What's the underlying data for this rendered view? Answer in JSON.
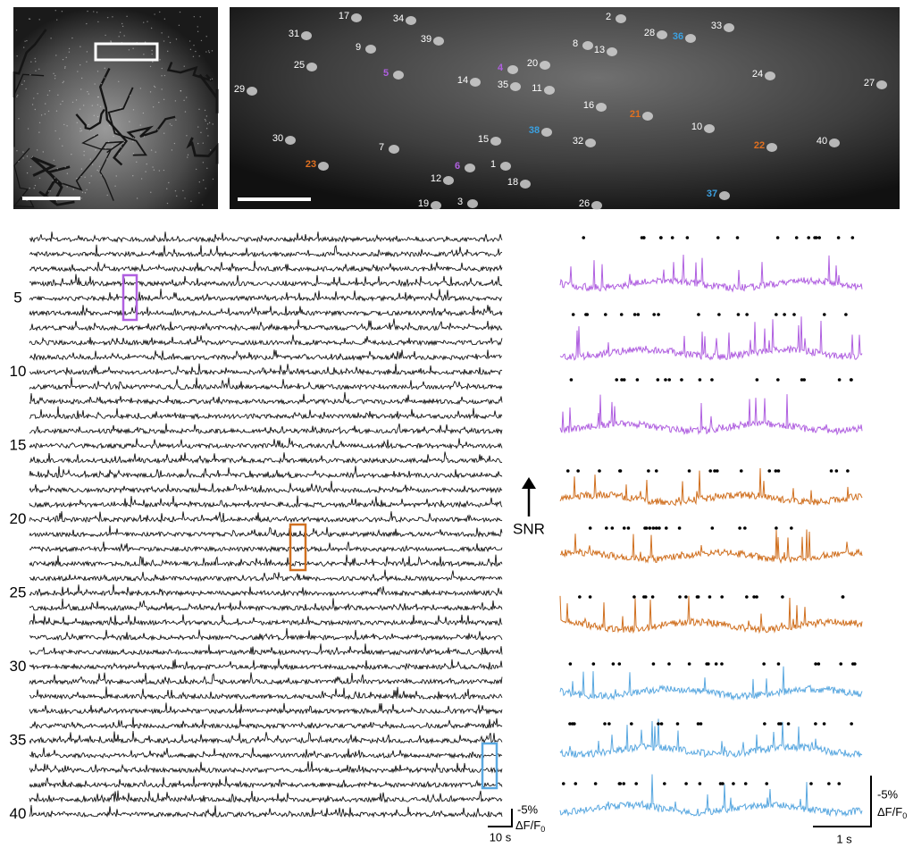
{
  "image_labels": [
    {
      "label": "17",
      "color": "#ffffff"
    },
    {
      "label": "34",
      "color": "#ffffff"
    },
    {
      "label": "2",
      "color": "#ffffff"
    },
    {
      "label": "28",
      "color": "#ffffff"
    },
    {
      "label": "36",
      "color": "#3ba0e0"
    },
    {
      "label": "33",
      "color": "#ffffff"
    },
    {
      "label": "31",
      "color": "#ffffff"
    },
    {
      "label": "39",
      "color": "#ffffff"
    },
    {
      "label": "9",
      "color": "#ffffff"
    },
    {
      "label": "8",
      "color": "#ffffff"
    },
    {
      "label": "13",
      "color": "#ffffff"
    },
    {
      "label": "25",
      "color": "#ffffff"
    },
    {
      "label": "5",
      "color": "#b060e0"
    },
    {
      "label": "4",
      "color": "#b060e0"
    },
    {
      "label": "20",
      "color": "#ffffff"
    },
    {
      "label": "24",
      "color": "#ffffff"
    },
    {
      "label": "29",
      "color": "#ffffff"
    },
    {
      "label": "14",
      "color": "#ffffff"
    },
    {
      "label": "35",
      "color": "#ffffff"
    },
    {
      "label": "11",
      "color": "#ffffff"
    },
    {
      "label": "27",
      "color": "#ffffff"
    },
    {
      "label": "16",
      "color": "#ffffff"
    },
    {
      "label": "21",
      "color": "#e07020"
    },
    {
      "label": "10",
      "color": "#ffffff"
    },
    {
      "label": "38",
      "color": "#3ba0e0"
    },
    {
      "label": "30",
      "color": "#ffffff"
    },
    {
      "label": "15",
      "color": "#ffffff"
    },
    {
      "label": "32",
      "color": "#ffffff"
    },
    {
      "label": "22",
      "color": "#e07020"
    },
    {
      "label": "40",
      "color": "#ffffff"
    },
    {
      "label": "7",
      "color": "#ffffff"
    },
    {
      "label": "23",
      "color": "#e07020"
    },
    {
      "label": "6",
      "color": "#b060e0"
    },
    {
      "label": "1",
      "color": "#ffffff"
    },
    {
      "label": "12",
      "color": "#ffffff"
    },
    {
      "label": "18",
      "color": "#ffffff"
    },
    {
      "label": "37",
      "color": "#3ba0e0"
    },
    {
      "label": "19",
      "color": "#ffffff"
    },
    {
      "label": "3",
      "color": "#ffffff"
    },
    {
      "label": "26",
      "color": "#ffffff"
    }
  ],
  "row_labels": [
    "5",
    "10",
    "15",
    "20",
    "25",
    "30",
    "35",
    "40"
  ],
  "snr_label": "SNR",
  "scale_left": {
    "amplitude": "-5%",
    "unit": "ΔF/F",
    "unit_sub": "0",
    "time": "10 s"
  },
  "scale_right": {
    "amplitude": "-5%",
    "unit": "ΔF/F",
    "unit_sub": "0",
    "time": "1 s"
  }
}
